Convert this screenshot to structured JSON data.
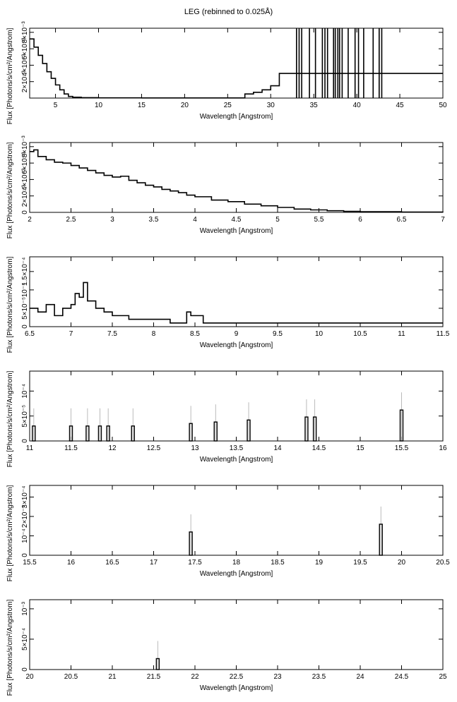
{
  "title": "LEG (rebinned to 0.025Å)",
  "chart_data": [
    {
      "type": "step",
      "xlabel": "Wavelength [Angstrom]",
      "ylabel": "Flux [Photons/s/cm²/Angstrom]",
      "xlim": [
        2,
        50
      ],
      "ylim": [
        0,
        0.0085
      ],
      "xticks": [
        5,
        10,
        15,
        20,
        25,
        30,
        35,
        40,
        45,
        50
      ],
      "xtick_labels": [
        "5",
        "10",
        "15",
        "20",
        "25",
        "30",
        "35",
        "40",
        "45",
        "50"
      ],
      "yticks": [
        0.002,
        0.004,
        0.006,
        0.008
      ],
      "ytick_labels": [
        "2×10⁻³",
        "4×10⁻³",
        "6×10⁻³",
        "8×10⁻³"
      ],
      "x": [
        2.0,
        2.5,
        3.0,
        3.5,
        4.0,
        4.5,
        5.0,
        5.5,
        6.0,
        6.5,
        7.0,
        8.0,
        10.0,
        15.0,
        20.0,
        25.0,
        27.0,
        28.0,
        29.0,
        30.0,
        31.0
      ],
      "y": [
        0.0072,
        0.0062,
        0.0052,
        0.0042,
        0.0032,
        0.0024,
        0.0016,
        0.001,
        0.0005,
        0.0002,
        0.0001,
        5e-05,
        3e-05,
        2e-05,
        2e-05,
        2e-05,
        0.0005,
        0.0007,
        0.001,
        0.0015,
        0.003
      ],
      "spikes": [
        33.0,
        33.3,
        33.6,
        34.5,
        35.2,
        36.0,
        36.3,
        36.6,
        37.3,
        37.5,
        37.8,
        38.0,
        38.3,
        39.0,
        39.8,
        40.2,
        40.8,
        41.9,
        42.6,
        42.9
      ]
    },
    {
      "type": "step",
      "xlabel": "Wavelength [Angstrom]",
      "ylabel": "Flux [Photons/s/cm²/Angstrom]",
      "xlim": [
        2,
        7
      ],
      "ylim": [
        0,
        0.0085
      ],
      "xticks": [
        2,
        2.5,
        3,
        3.5,
        4,
        4.5,
        5,
        5.5,
        6,
        6.5,
        7
      ],
      "xtick_labels": [
        "2",
        "2.5",
        "3",
        "3.5",
        "4",
        "4.5",
        "5",
        "5.5",
        "6",
        "6.5",
        "7"
      ],
      "yticks": [
        0,
        0.002,
        0.004,
        0.006,
        0.008
      ],
      "ytick_labels": [
        "0",
        "2×10⁻³",
        "4×10⁻³",
        "6×10⁻³",
        "8×10⁻³"
      ],
      "x": [
        2.0,
        2.05,
        2.1,
        2.2,
        2.3,
        2.4,
        2.5,
        2.6,
        2.7,
        2.8,
        2.9,
        3.0,
        3.1,
        3.2,
        3.3,
        3.4,
        3.5,
        3.6,
        3.7,
        3.8,
        3.9,
        4.0,
        4.2,
        4.4,
        4.6,
        4.8,
        5.0,
        5.2,
        5.4,
        5.6,
        5.8,
        6.0,
        6.5,
        7.0
      ],
      "y": [
        0.0074,
        0.0076,
        0.0068,
        0.0064,
        0.0061,
        0.006,
        0.0057,
        0.0054,
        0.0051,
        0.0048,
        0.0045,
        0.0043,
        0.0044,
        0.0039,
        0.0036,
        0.0033,
        0.0031,
        0.0028,
        0.0026,
        0.0024,
        0.0021,
        0.0019,
        0.0015,
        0.0013,
        0.001,
        0.0008,
        0.0006,
        0.0004,
        0.0003,
        0.0002,
        0.00012,
        8e-05,
        4e-05,
        2e-05
      ]
    },
    {
      "type": "step",
      "xlabel": "Wavelength [Angstrom]",
      "ylabel": "Flux [Photons/s/cm²/Angstrom]",
      "xlim": [
        6.5,
        11.5
      ],
      "ylim": [
        0,
        0.00019
      ],
      "xticks": [
        6.5,
        7,
        7.5,
        8,
        8.5,
        9,
        9.5,
        10,
        10.5,
        11,
        11.5
      ],
      "xtick_labels": [
        "6.5",
        "7",
        "7.5",
        "8",
        "8.5",
        "9",
        "9.5",
        "10",
        "10.5",
        "11",
        "11.5"
      ],
      "yticks": [
        0,
        5e-05,
        0.0001,
        0.00015
      ],
      "ytick_labels": [
        "0",
        "5×10⁻⁵",
        "10⁻⁴",
        "1.5×10⁻⁴"
      ],
      "x": [
        6.5,
        6.6,
        6.7,
        6.8,
        6.9,
        7.0,
        7.05,
        7.1,
        7.15,
        7.2,
        7.3,
        7.4,
        7.5,
        7.6,
        7.7,
        7.8,
        8.0,
        8.2,
        8.4,
        8.45,
        8.6,
        8.8,
        9.0,
        9.2,
        9.4,
        9.6,
        9.8,
        10.0,
        10.2,
        10.4,
        10.6,
        10.8,
        11.0,
        11.2,
        11.5
      ],
      "y": [
        5e-05,
        4e-05,
        6e-05,
        3e-05,
        5e-05,
        6e-05,
        9e-05,
        8e-05,
        0.00012,
        7e-05,
        5e-05,
        4e-05,
        3e-05,
        3e-05,
        2e-05,
        2e-05,
        2e-05,
        1e-05,
        4e-05,
        3e-05,
        1e-05,
        1e-05,
        1e-05,
        1e-05,
        1e-05,
        1e-05,
        1e-05,
        1e-05,
        1e-05,
        1e-05,
        1e-05,
        1e-05,
        1e-05,
        1e-05,
        1e-05
      ]
    },
    {
      "type": "step",
      "xlabel": "Wavelength [Angstrom]",
      "ylabel": "Flux [Photons/s/cm²/Angstrom]",
      "xlim": [
        11,
        16
      ],
      "ylim": [
        0,
        0.00014
      ],
      "xticks": [
        11,
        11.5,
        12,
        12.5,
        13,
        13.5,
        14,
        14.5,
        15,
        15.5,
        16
      ],
      "xtick_labels": [
        "11",
        "11.5",
        "12",
        "12.5",
        "13",
        "13.5",
        "14",
        "14.5",
        "15",
        "15.5",
        "16"
      ],
      "yticks": [
        0,
        5e-05,
        0.0001
      ],
      "ytick_labels": [
        "0",
        "5×10⁻⁵",
        "10⁻⁴"
      ],
      "spikes": [
        11.05,
        11.5,
        11.7,
        11.85,
        11.95,
        12.25,
        12.95,
        13.25,
        13.65,
        14.35,
        14.45,
        15.5
      ],
      "spike_values": [
        3e-05,
        3e-05,
        3e-05,
        3e-05,
        3e-05,
        3e-05,
        3.5e-05,
        3.8e-05,
        4.2e-05,
        4.8e-05,
        4.8e-05,
        6.2e-05
      ]
    },
    {
      "type": "step",
      "xlabel": "Wavelength [Angstrom]",
      "ylabel": "Flux [Photons/s/cm²/Angstrom]",
      "xlim": [
        15.5,
        20.5
      ],
      "ylim": [
        0,
        0.00036
      ],
      "xticks": [
        15.5,
        16,
        16.5,
        17,
        17.5,
        18,
        18.5,
        19,
        19.5,
        20,
        20.5
      ],
      "xtick_labels": [
        "15.5",
        "16",
        "16.5",
        "17",
        "17.5",
        "18",
        "18.5",
        "19",
        "19.5",
        "20",
        "20.5"
      ],
      "yticks": [
        0,
        0.0001,
        0.0002,
        0.0003
      ],
      "ytick_labels": [
        "0",
        "10⁻⁴",
        "2×10⁻⁴",
        "3×10⁻⁴"
      ],
      "spikes": [
        17.45,
        19.75
      ],
      "spike_values": [
        0.00012,
        0.00016
      ]
    },
    {
      "type": "step",
      "xlabel": "Wavelength [Angstrom]",
      "ylabel": "Flux [Photons/s/cm²/Angstrom]",
      "xlim": [
        20,
        25
      ],
      "ylim": [
        0,
        0.00115
      ],
      "xticks": [
        20,
        20.5,
        21,
        21.5,
        22,
        22.5,
        23,
        23.5,
        24,
        24.5,
        25
      ],
      "xtick_labels": [
        "20",
        "20.5",
        "21",
        "21.5",
        "22",
        "22.5",
        "23",
        "23.5",
        "24",
        "24.5",
        "25"
      ],
      "yticks": [
        0,
        0.0005,
        0.001
      ],
      "ytick_labels": [
        "0",
        "5×10⁻⁴",
        "10⁻³"
      ],
      "spikes": [
        21.55
      ],
      "spike_values": [
        0.00018
      ]
    }
  ]
}
